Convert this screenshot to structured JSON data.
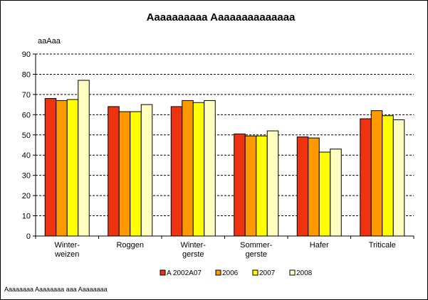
{
  "chart_data": {
    "type": "bar",
    "title": "Aaaaaaaaaa Aaaaaaaaaaaaaa",
    "ylabel": "aaAaa",
    "xlabel": "",
    "ylim": [
      0,
      90
    ],
    "yticks": [
      0,
      10,
      20,
      30,
      40,
      50,
      60,
      70,
      80,
      90
    ],
    "grid": "horizontal dashed",
    "legend_position": "bottom",
    "categories": [
      [
        "Winter-",
        "weizen"
      ],
      [
        "Roggen"
      ],
      [
        "Winter-",
        "gerste"
      ],
      [
        "Sommer-",
        "gerste"
      ],
      [
        "Hafer"
      ],
      [
        "Triticale"
      ]
    ],
    "series": [
      {
        "name": "A 2002A07",
        "color": "#EE3311",
        "values": [
          68,
          64,
          64,
          50.5,
          49,
          58
        ]
      },
      {
        "name": "2006",
        "color": "#FF9900",
        "values": [
          67,
          61.5,
          67,
          49.5,
          48.5,
          62
        ]
      },
      {
        "name": "2007",
        "color": "#FFFF00",
        "values": [
          67.5,
          61.5,
          66,
          49.5,
          41.5,
          59.5
        ]
      },
      {
        "name": "2008",
        "color": "#FFFFC0",
        "values": [
          77,
          65,
          67,
          52,
          43,
          57.5
        ]
      }
    ]
  },
  "footnote": "Aaaaaaaa Aaaaaaaa aaa Aaaaaaaa"
}
